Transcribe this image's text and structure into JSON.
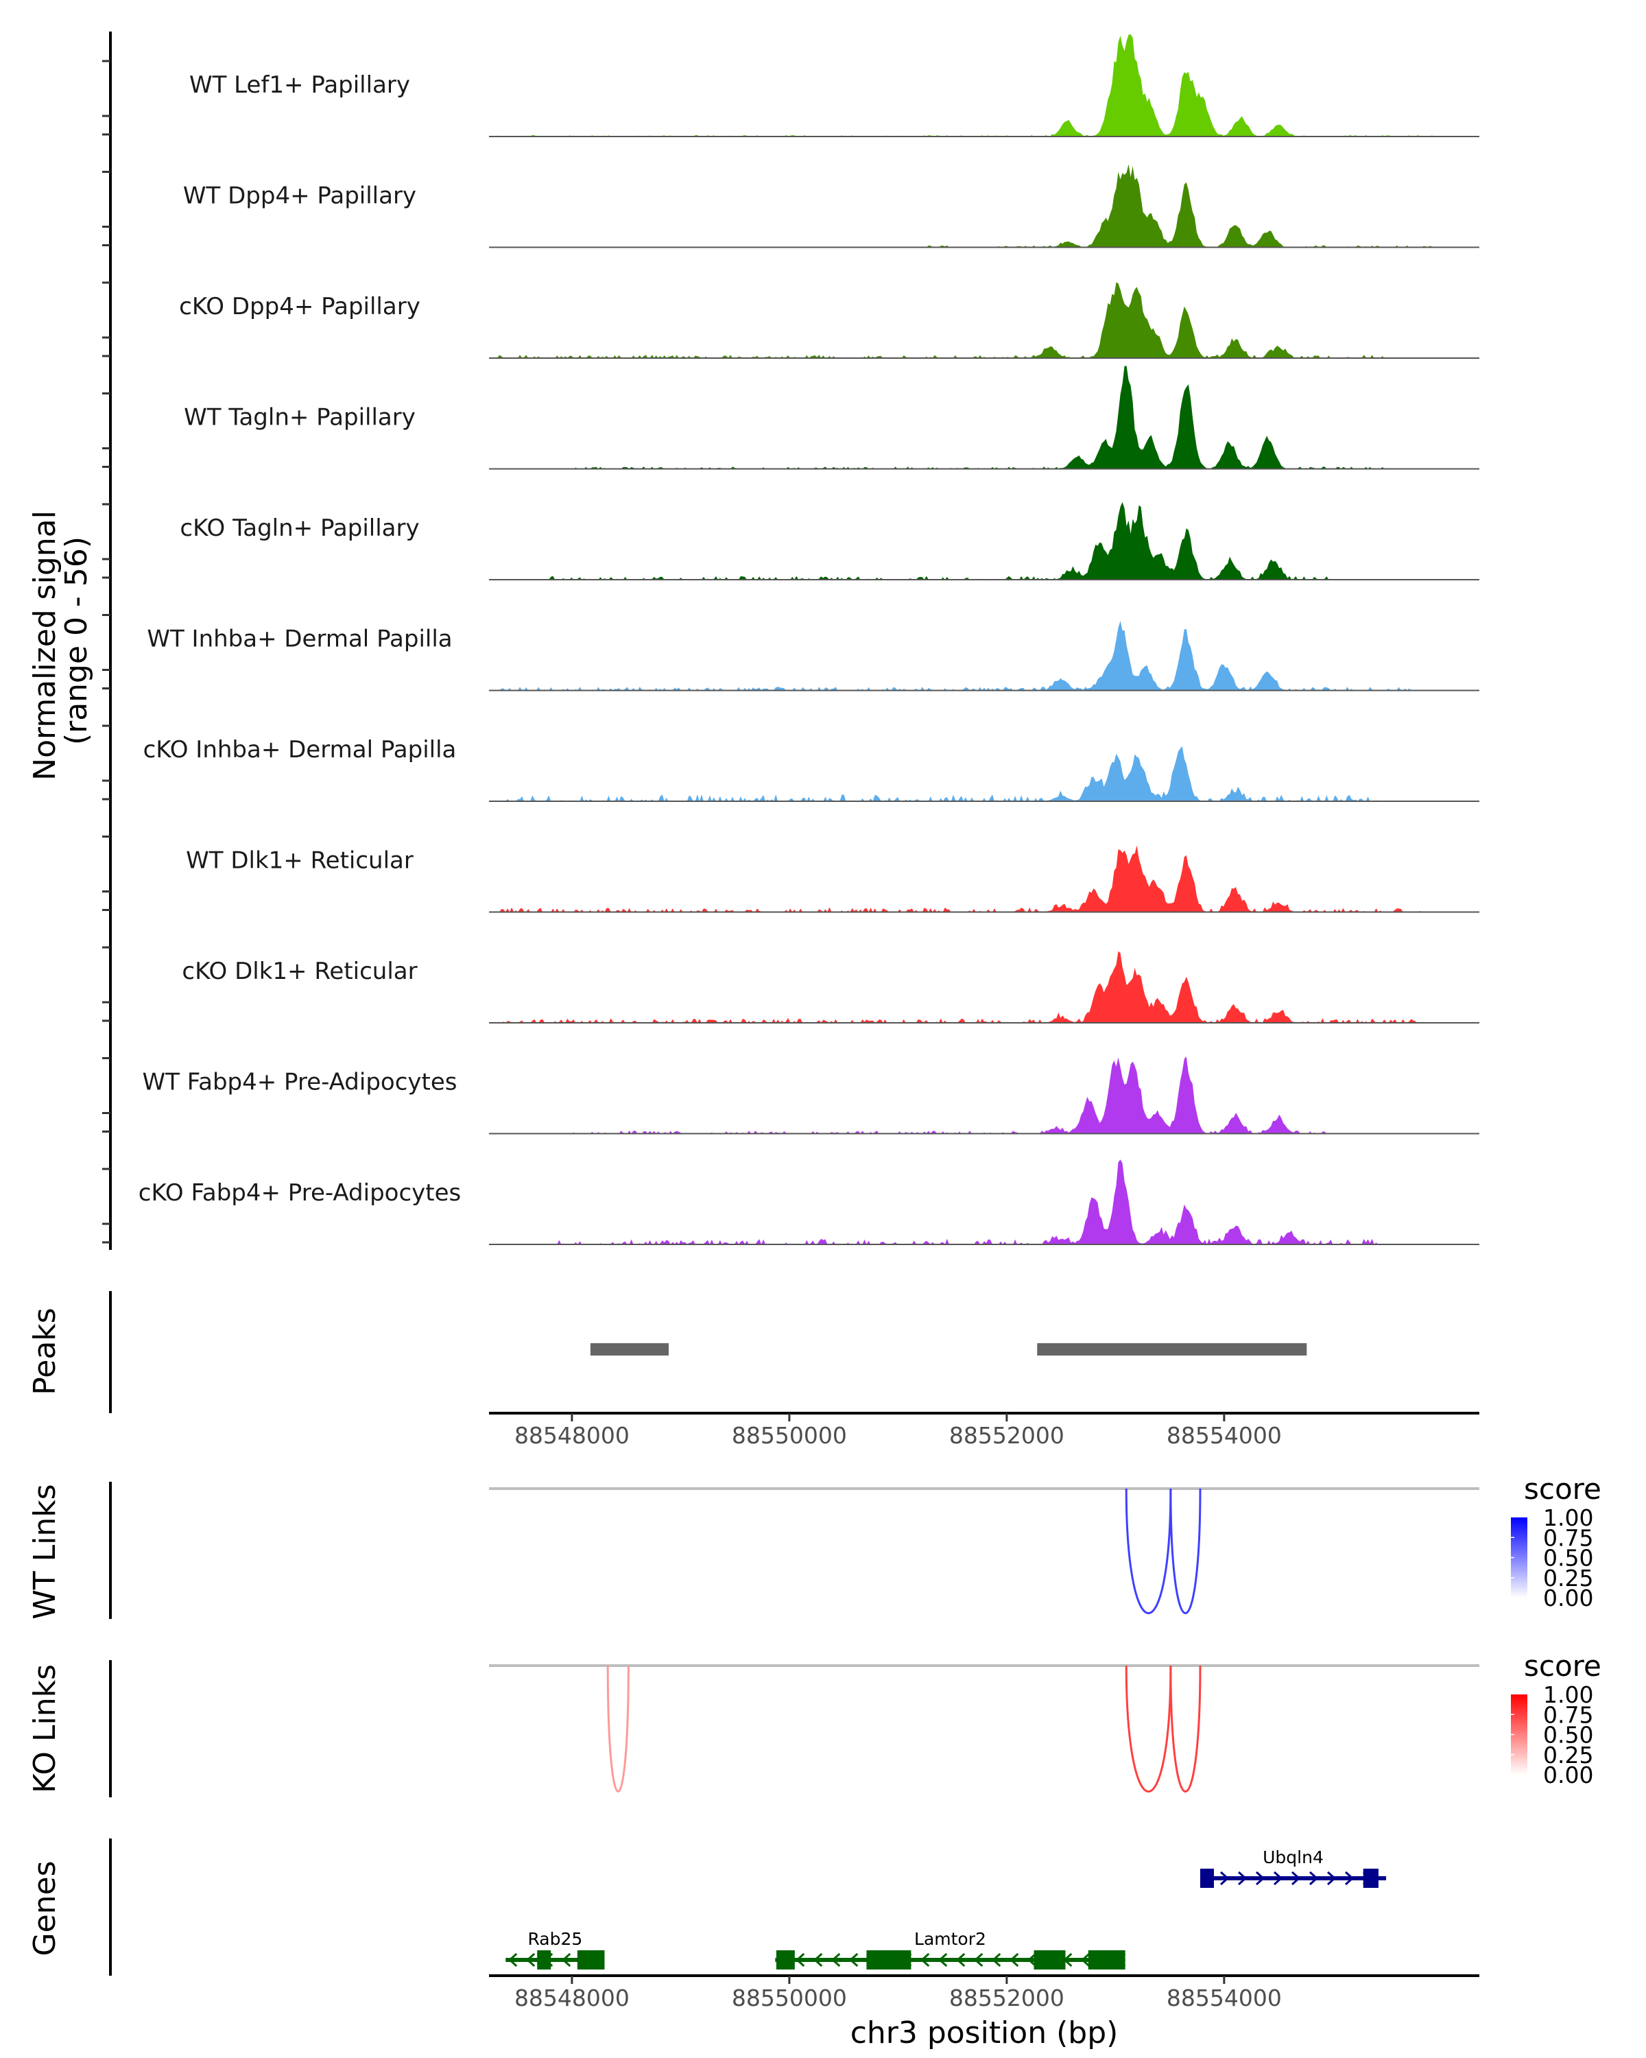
{
  "chart_data": {
    "type": "area",
    "title": "",
    "xlabel": "chr3 position (bp)",
    "ylabel": "Normalized signal\n(range 0 - 56)",
    "ylabel_lines": [
      "Normalized signal",
      "(range 0 - 56)"
    ],
    "ylim": [
      0,
      56
    ],
    "xlim": [
      88547237,
      88556348
    ],
    "x_ticks": [
      88548000,
      88550000,
      88552000,
      88554000
    ],
    "x_tick_labels": [
      "88548000",
      "88550000",
      "88552000",
      "88554000"
    ],
    "grid": false,
    "coverage_tracks": [
      {
        "name": "WT Lef1+ Papillary",
        "color": "#66CC00",
        "peaks": [
          [
            88552560,
            8
          ],
          [
            88552960,
            12
          ],
          [
            88553040,
            40
          ],
          [
            88553160,
            44
          ],
          [
            88553310,
            18
          ],
          [
            88553650,
            35
          ],
          [
            88553800,
            20
          ],
          [
            88554150,
            10
          ],
          [
            88554500,
            6
          ]
        ],
        "background": [
          [
            88547300,
            88556000,
            0.4
          ]
        ]
      },
      {
        "name": "WT Dpp4+ Papillary",
        "color": "#458B00",
        "peaks": [
          [
            88552560,
            3
          ],
          [
            88552900,
            12
          ],
          [
            88553050,
            38
          ],
          [
            88553180,
            36
          ],
          [
            88553350,
            16
          ],
          [
            88553650,
            34
          ],
          [
            88554100,
            12
          ],
          [
            88554400,
            9
          ]
        ],
        "background": [
          [
            88551200,
            88556000,
            0.5
          ]
        ]
      },
      {
        "name": "cKO Dpp4+ Papillary",
        "color": "#458B00",
        "peaks": [
          [
            88552400,
            6
          ],
          [
            88552950,
            24
          ],
          [
            88553050,
            30
          ],
          [
            88553200,
            33
          ],
          [
            88553350,
            15
          ],
          [
            88553650,
            26
          ],
          [
            88554100,
            10
          ],
          [
            88554500,
            6
          ]
        ],
        "background": [
          [
            88547300,
            88555500,
            0.9
          ]
        ]
      },
      {
        "name": "WT Tagln+ Papillary",
        "color": "#006400",
        "peaks": [
          [
            88552650,
            6
          ],
          [
            88552900,
            15
          ],
          [
            88553100,
            54
          ],
          [
            88553320,
            16
          ],
          [
            88553650,
            44
          ],
          [
            88554050,
            14
          ],
          [
            88554400,
            16
          ]
        ],
        "background": [
          [
            88548000,
            88555500,
            0.6
          ]
        ]
      },
      {
        "name": "cKO Tagln+ Papillary",
        "color": "#006400",
        "peaks": [
          [
            88552600,
            5
          ],
          [
            88552850,
            20
          ],
          [
            88553050,
            38
          ],
          [
            88553220,
            36
          ],
          [
            88553400,
            14
          ],
          [
            88553650,
            26
          ],
          [
            88554050,
            10
          ],
          [
            88554450,
            10
          ]
        ],
        "background": [
          [
            88547800,
            88555000,
            1.0
          ]
        ]
      },
      {
        "name": "WT Inhba+ Dermal Papilla",
        "color": "#5DADEC",
        "peaks": [
          [
            88552500,
            6
          ],
          [
            88552900,
            8
          ],
          [
            88553050,
            36
          ],
          [
            88553280,
            12
          ],
          [
            88553650,
            31
          ],
          [
            88554000,
            14
          ],
          [
            88554400,
            10
          ]
        ],
        "background": [
          [
            88547300,
            88555800,
            1.0
          ]
        ]
      },
      {
        "name": "cKO Inhba+ Dermal Papilla",
        "color": "#5DADEC",
        "peaks": [
          [
            88552500,
            3
          ],
          [
            88552800,
            12
          ],
          [
            88553000,
            24
          ],
          [
            88553200,
            24
          ],
          [
            88553350,
            3
          ],
          [
            88553600,
            28
          ],
          [
            88554100,
            5
          ]
        ],
        "background": [
          [
            88547300,
            88555600,
            1.8
          ]
        ]
      },
      {
        "name": "WT Dlk1+ Reticular",
        "color": "#FF3333",
        "peaks": [
          [
            88552500,
            3
          ],
          [
            88552800,
            12
          ],
          [
            88553050,
            32
          ],
          [
            88553200,
            30
          ],
          [
            88553380,
            15
          ],
          [
            88553650,
            30
          ],
          [
            88554100,
            12
          ],
          [
            88554500,
            5
          ]
        ],
        "background": [
          [
            88547300,
            88555800,
            1.2
          ]
        ]
      },
      {
        "name": "cKO Dlk1+ Reticular",
        "color": "#FF3333",
        "peaks": [
          [
            88552500,
            3
          ],
          [
            88552850,
            18
          ],
          [
            88553020,
            35
          ],
          [
            88553200,
            28
          ],
          [
            88553400,
            12
          ],
          [
            88553650,
            24
          ],
          [
            88554100,
            9
          ],
          [
            88554500,
            6
          ]
        ],
        "background": [
          [
            88547300,
            88555800,
            1.2
          ]
        ]
      },
      {
        "name": "WT Fabp4+ Pre-Adipocytes",
        "color": "#B23AEE",
        "peaks": [
          [
            88552450,
            3
          ],
          [
            88552750,
            18
          ],
          [
            88553000,
            40
          ],
          [
            88553170,
            38
          ],
          [
            88553380,
            12
          ],
          [
            88553650,
            40
          ],
          [
            88554100,
            9
          ],
          [
            88554500,
            8
          ]
        ],
        "background": [
          [
            88548000,
            88555000,
            0.8
          ]
        ]
      },
      {
        "name": "cKO Fabp4+ Pre-Adipocytes",
        "color": "#B23AEE",
        "peaks": [
          [
            88552500,
            3
          ],
          [
            88552800,
            26
          ],
          [
            88553050,
            44
          ],
          [
            88553400,
            7
          ],
          [
            88553650,
            20
          ],
          [
            88554100,
            10
          ],
          [
            88554600,
            6
          ]
        ],
        "background": [
          [
            88547800,
            88555400,
            1.5
          ]
        ]
      }
    ],
    "peaks_track": {
      "label": "Peaks",
      "color": "#666666",
      "regions": [
        [
          88548170,
          88548890
        ],
        [
          88552280,
          88554760
        ]
      ]
    },
    "links_tracks": [
      {
        "label": "WT Links",
        "legend_title": "score",
        "color_low": "#FFFFFF",
        "color_high": "#0000FF",
        "legend_ticks": [
          "1.00",
          "0.75",
          "0.50",
          "0.25",
          "0.00"
        ],
        "links": [
          {
            "start": 88553100,
            "end": 88553508,
            "score": 0.75
          },
          {
            "start": 88553508,
            "end": 88553780,
            "score": 0.75
          }
        ]
      },
      {
        "label": "KO Links",
        "legend_title": "score",
        "color_low": "#FFFFFF",
        "color_high": "#FF0000",
        "legend_ticks": [
          "1.00",
          "0.75",
          "0.50",
          "0.25",
          "0.00"
        ],
        "links": [
          {
            "start": 88548330,
            "end": 88548520,
            "score": 0.4
          },
          {
            "start": 88553100,
            "end": 88553508,
            "score": 0.75
          },
          {
            "start": 88553508,
            "end": 88553780,
            "score": 0.75
          }
        ]
      }
    ],
    "genes_track": {
      "label": "Genes",
      "genes": [
        {
          "name": "Ubqln4",
          "strand": "+",
          "color": "#00008B",
          "row": 0,
          "start": 88553780,
          "end": 88555490,
          "exons": [
            [
              88553780,
              88553880
            ],
            [
              88555280,
              88555420
            ]
          ]
        },
        {
          "name": "Rab25",
          "strand": "-",
          "color": "#006400",
          "row": 1,
          "start": 88547390,
          "end": 88548300,
          "exons": [
            [
              88547680,
              88547800
            ],
            [
              88548050,
              88548300
            ]
          ]
        },
        {
          "name": "Lamtor2",
          "strand": "-",
          "color": "#006400",
          "row": 1,
          "start": 88549870,
          "end": 88553090,
          "exons": [
            [
              88549880,
              88550050
            ],
            [
              88550710,
              88551120
            ],
            [
              88552250,
              88552540
            ],
            [
              88552750,
              88553090
            ]
          ]
        }
      ]
    }
  }
}
